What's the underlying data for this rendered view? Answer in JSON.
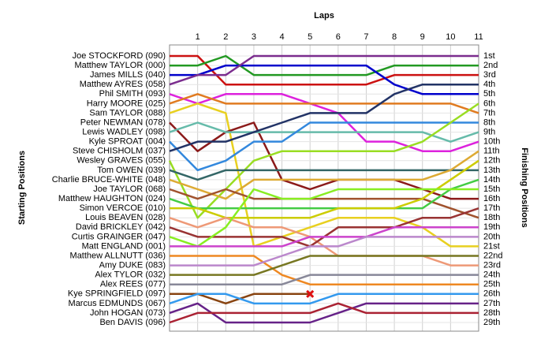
{
  "chart_data": {
    "type": "lap",
    "x_label": "Laps",
    "y_label": "Starting Positions",
    "y2_label": "Finishing Positions",
    "xlim": [
      0,
      11
    ],
    "xticks": [
      1,
      2,
      3,
      4,
      5,
      6,
      7,
      8,
      9,
      10,
      11
    ],
    "ylim": [
      1,
      29
    ],
    "grid": true,
    "yticks": [
      {
        "value": 1,
        "label": "1st"
      },
      {
        "value": 2,
        "label": "2nd"
      },
      {
        "value": 3,
        "label": "3rd"
      },
      {
        "value": 4,
        "label": "4th"
      },
      {
        "value": 5,
        "label": "5th"
      },
      {
        "value": 6,
        "label": "6th"
      },
      {
        "value": 7,
        "label": "7th"
      },
      {
        "value": 8,
        "label": "8th"
      },
      {
        "value": 9,
        "label": "9th"
      },
      {
        "value": 10,
        "label": "10th"
      },
      {
        "value": 11,
        "label": "11th"
      },
      {
        "value": 12,
        "label": "12th"
      },
      {
        "value": 13,
        "label": "13th"
      },
      {
        "value": 14,
        "label": "14th"
      },
      {
        "value": 15,
        "label": "15th"
      },
      {
        "value": 16,
        "label": "16th"
      },
      {
        "value": 17,
        "label": "17th"
      },
      {
        "value": 18,
        "label": "18th"
      },
      {
        "value": 19,
        "label": "19th"
      },
      {
        "value": 20,
        "label": "20th"
      },
      {
        "value": 21,
        "label": "21st"
      },
      {
        "value": 22,
        "label": "22nd"
      },
      {
        "value": 23,
        "label": "23rd"
      },
      {
        "value": 24,
        "label": "24th"
      },
      {
        "value": 25,
        "label": "25th"
      },
      {
        "value": 26,
        "label": "26th"
      },
      {
        "value": 27,
        "label": "27th"
      },
      {
        "value": 28,
        "label": "28th"
      },
      {
        "value": 29,
        "label": "29th"
      }
    ],
    "series": [
      {
        "name": "Joe STOCKFORD (090)",
        "color": "#cc1111",
        "values": [
          1,
          1,
          4,
          4,
          4,
          4,
          4,
          4,
          3,
          3,
          3,
          3
        ]
      },
      {
        "name": "Matthew TAYLOR (000)",
        "color": "#229922",
        "values": [
          2,
          2,
          1,
          3,
          3,
          3,
          3,
          3,
          2,
          2,
          2,
          2
        ]
      },
      {
        "name": "James MILLS (040)",
        "color": "#0000cc",
        "values": [
          3,
          3,
          2,
          2,
          2,
          2,
          2,
          2,
          4,
          5,
          5,
          5
        ]
      },
      {
        "name": "Matthew AYRES (058)",
        "color": "#7b2d8e",
        "values": [
          4,
          3,
          3,
          1,
          1,
          1,
          1,
          1,
          1,
          1,
          1,
          1
        ]
      },
      {
        "name": "Phil SMITH (093)",
        "color": "#dd22dd",
        "values": [
          5,
          6,
          5,
          5,
          5,
          6,
          7,
          10,
          10,
          11,
          11,
          10
        ]
      },
      {
        "name": "Harry MOORE (025)",
        "color": "#e07b20",
        "values": [
          6,
          5,
          6,
          6,
          6,
          6,
          6,
          6,
          6,
          6,
          6,
          7
        ]
      },
      {
        "name": "Sam TAYLOR (088)",
        "color": "#e8d020",
        "values": [
          7,
          6,
          7,
          21,
          20,
          19,
          18,
          18,
          18,
          19,
          21,
          21
        ]
      },
      {
        "name": "Peter NEWMAN (078)",
        "color": "#8b1a1a",
        "values": [
          8,
          11,
          9,
          8,
          14,
          15,
          14,
          14,
          14,
          15,
          16,
          16
        ]
      },
      {
        "name": "Lewis WADLEY (098)",
        "color": "#66bbaa",
        "values": [
          9,
          8,
          9,
          9,
          9,
          9,
          9,
          9,
          9,
          9,
          10,
          9
        ]
      },
      {
        "name": "Kyle SPROAT (004)",
        "color": "#3388dd",
        "values": [
          10,
          13,
          12,
          10,
          10,
          8,
          8,
          8,
          8,
          8,
          8,
          8
        ]
      },
      {
        "name": "Steve CHISHOLM (037)",
        "color": "#223366",
        "values": [
          11,
          10,
          10,
          9,
          8,
          7,
          7,
          7,
          5,
          4,
          4,
          4
        ]
      },
      {
        "name": "Wesley GRAVES (055)",
        "color": "#99dd22",
        "values": [
          12,
          18,
          15,
          12,
          11,
          11,
          11,
          11,
          11,
          10,
          8,
          6
        ]
      },
      {
        "name": "Tom OWEN (039)",
        "color": "#336666",
        "values": [
          13,
          14,
          13,
          13,
          13,
          13,
          13,
          13,
          13,
          13,
          13,
          13
        ]
      },
      {
        "name": "Charlie BRUCE-WHITE (048)",
        "color": "#ddaa33",
        "values": [
          14,
          15,
          16,
          14,
          14,
          14,
          14,
          14,
          14,
          14,
          13,
          11
        ]
      },
      {
        "name": "Joe TAYLOR (068)",
        "color": "#a0522d",
        "values": [
          15,
          16,
          15,
          16,
          16,
          16,
          16,
          16,
          16,
          16,
          17,
          18
        ]
      },
      {
        "name": "Matthew HAUGHTON (024)",
        "color": "#44cc44",
        "values": [
          16,
          17,
          17,
          17,
          17,
          17,
          17,
          17,
          17,
          17,
          15,
          14
        ]
      },
      {
        "name": "Simon VERCOE (010)",
        "color": "#cccc00",
        "values": [
          17,
          17,
          18,
          18,
          18,
          18,
          17,
          17,
          17,
          16,
          14,
          12
        ]
      },
      {
        "name": "Louis BEAVEN (028)",
        "color": "#ee9977",
        "values": [
          18,
          19,
          18,
          19,
          19,
          20,
          22,
          22,
          22,
          22,
          23,
          23
        ]
      },
      {
        "name": "David BRICKLEY (042)",
        "color": "#993333",
        "values": [
          19,
          20,
          20,
          20,
          20,
          21,
          19,
          19,
          19,
          18,
          18,
          17
        ]
      },
      {
        "name": "Curtis GRAINGER (047)",
        "color": "#88ee22",
        "values": [
          20,
          21,
          19,
          15,
          16,
          16,
          15,
          15,
          15,
          15,
          15,
          15
        ]
      },
      {
        "name": "Matt ENGLAND (001)",
        "color": "#cc44cc",
        "values": [
          21,
          21,
          21,
          21,
          21,
          20,
          20,
          20,
          19,
          19,
          19,
          19
        ]
      },
      {
        "name": "Matthew ALLNUTT (036)",
        "color": "#ee8822",
        "values": [
          22,
          22,
          22,
          22,
          24,
          25,
          25,
          25,
          25,
          25,
          25,
          25
        ]
      },
      {
        "name": "Amy DUKE (083)",
        "color": "#bb88cc",
        "values": [
          23,
          23,
          23,
          23,
          22,
          21,
          21,
          20,
          20,
          20,
          20,
          20
        ]
      },
      {
        "name": "Alex TYLOR (032)",
        "color": "#777722",
        "values": [
          24,
          24,
          24,
          24,
          23,
          22,
          22,
          22,
          22,
          22,
          22,
          22
        ]
      },
      {
        "name": "Alex REES (077)",
        "color": "#888899",
        "values": [
          25,
          25,
          25,
          25,
          25,
          24,
          24,
          24,
          24,
          24,
          24,
          24
        ]
      },
      {
        "name": "Kye SPRINGFIELD (097)",
        "color": "#884411",
        "values": [
          26,
          26,
          27,
          26,
          26,
          26,
          null,
          null,
          null,
          null,
          null,
          null
        ]
      },
      {
        "name": "Marcus EDMUNDS (067)",
        "color": "#3399ee",
        "values": [
          27,
          26,
          26,
          27,
          27,
          27,
          26,
          26,
          26,
          26,
          26,
          26
        ]
      },
      {
        "name": "John HOGAN (073)",
        "color": "#662288",
        "values": [
          28,
          27,
          29,
          29,
          29,
          29,
          28,
          27,
          27,
          27,
          27,
          27
        ]
      },
      {
        "name": "Ben DAVIS (096)",
        "color": "#aa2233",
        "values": [
          29,
          28,
          28,
          28,
          28,
          28,
          27,
          28,
          28,
          28,
          28,
          28
        ]
      }
    ]
  }
}
